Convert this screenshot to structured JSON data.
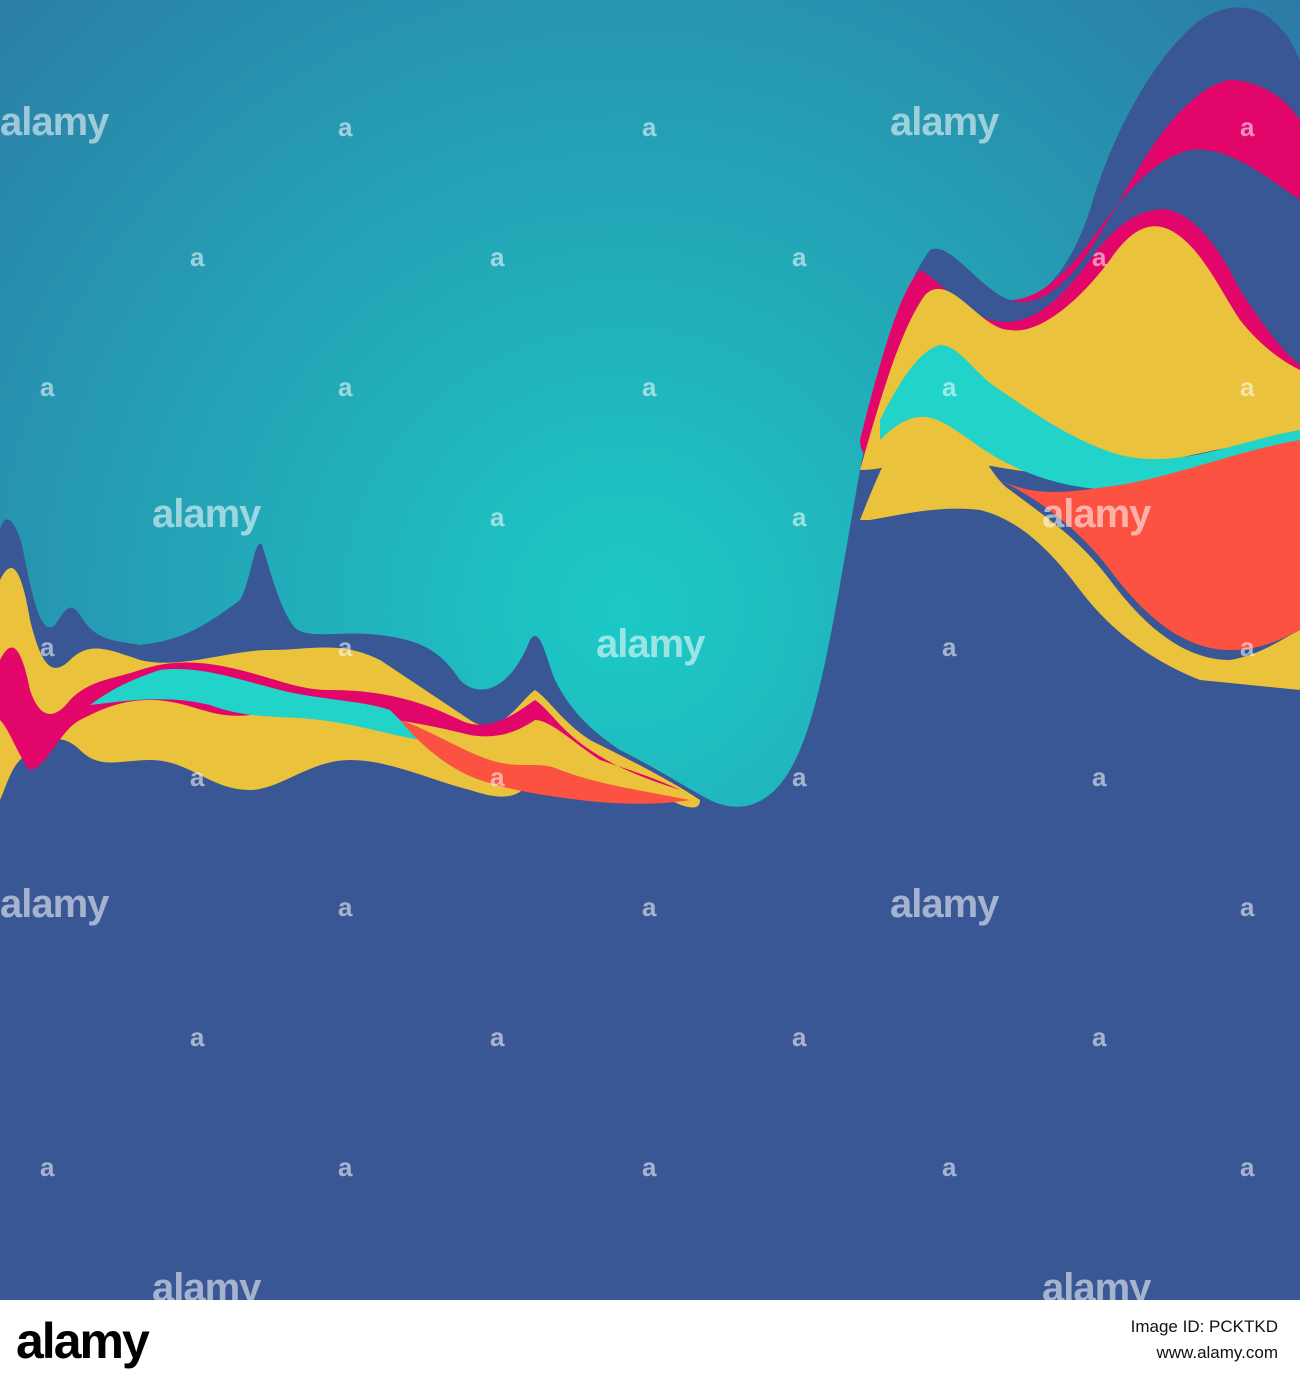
{
  "artwork": {
    "background_center_color": "#1ccac6",
    "background_edge_color": "#2d75a3",
    "palette": {
      "navy": "#3a5795",
      "yellow": "#eac23c",
      "magenta": "#e2066b",
      "coral": "#fb5241",
      "turquoise": "#22d3c9"
    }
  },
  "watermark": {
    "word": "alamy",
    "letter": "a"
  },
  "footer": {
    "logo": "alamy",
    "image_id_label": "Image ID: PCKTKD",
    "site": "www.alamy.com"
  }
}
